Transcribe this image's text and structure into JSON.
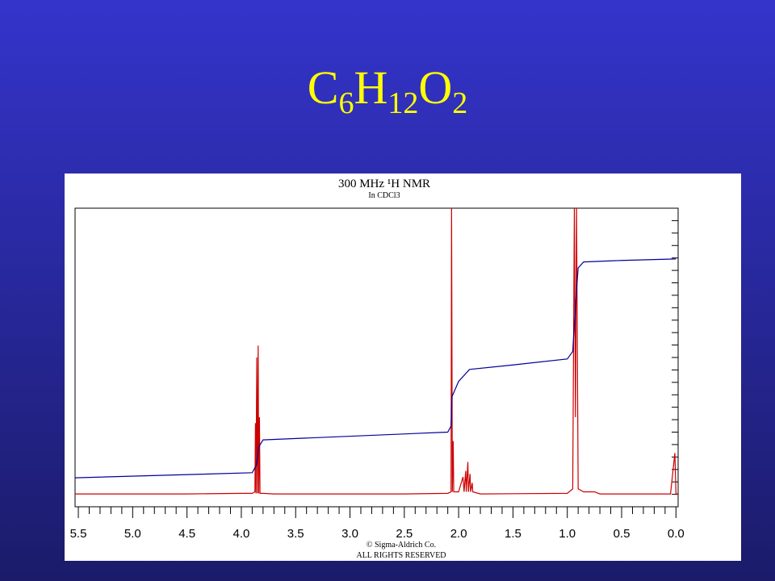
{
  "slide_title": [
    "C",
    "6",
    "H",
    "12",
    "O",
    "2"
  ],
  "chart_data": {
    "type": "line",
    "title": "300 MHz ¹H NMR",
    "subtitle": "In CDCl3",
    "footer": [
      "© Sigma-Aldrich Co.",
      "ALL RIGHTS RESERVED"
    ],
    "xlim": [
      5.53,
      -0.02
    ],
    "ylim": [
      0,
      100
    ],
    "xticks": [
      5.5,
      {
        "value": 5,
        "label": "5.0"
      },
      4.5,
      {
        "value": 4,
        "label": "4.0"
      },
      3.5,
      {
        "value": 3,
        "label": "3.0"
      },
      2.5,
      {
        "value": 2,
        "label": "2.0"
      },
      1.5,
      {
        "value": 1,
        "label": "1.0"
      },
      0.5,
      {
        "value": 0,
        "label": "0.0"
      }
    ],
    "series": [
      {
        "color": "#cc0000",
        "x": [
          5.53,
          4.5,
          4.0,
          3.9,
          3.875,
          3.87,
          3.865,
          3.858,
          3.852,
          3.845,
          3.84,
          3.833,
          3.828,
          3.8,
          3.7,
          2.5,
          2.1,
          2.07,
          2.065,
          2.058,
          2.05,
          2.045,
          2.0,
          1.96,
          1.95,
          1.935,
          1.93,
          1.915,
          1.91,
          1.895,
          1.89,
          1.875,
          1.87,
          1.8,
          1.0,
          0.95,
          0.935,
          0.925,
          0.915,
          0.9,
          0.85,
          0.75,
          0.7,
          0.05,
          0.01,
          0.0,
          -0.02
        ],
        "values": [
          4.3,
          4.3,
          4.5,
          4.5,
          5,
          28,
          4.5,
          50,
          4.5,
          54,
          4.5,
          30,
          4.5,
          4.5,
          4.3,
          4.3,
          4.5,
          5,
          100,
          5,
          22,
          5,
          5,
          10,
          5,
          12,
          5,
          15,
          5,
          11,
          5,
          8,
          5,
          4.3,
          4.5,
          6,
          100,
          30,
          100,
          6,
          5,
          5,
          4.3,
          4.3,
          18,
          4.3,
          4.3
        ]
      },
      {
        "color": "#000099",
        "x": [
          5.53,
          3.9,
          3.86,
          3.84,
          3.8,
          2.1,
          2.07,
          2.06,
          2.0,
          1.9,
          1.5,
          1.0,
          0.95,
          0.92,
          0.9,
          0.85,
          0.5,
          0.0
        ],
        "values": [
          9.7,
          11.4,
          14,
          20,
          22.4,
          25,
          27,
          37,
          42,
          46,
          47.5,
          49.5,
          52,
          70,
          80,
          82,
          82.5,
          83
        ]
      }
    ]
  }
}
